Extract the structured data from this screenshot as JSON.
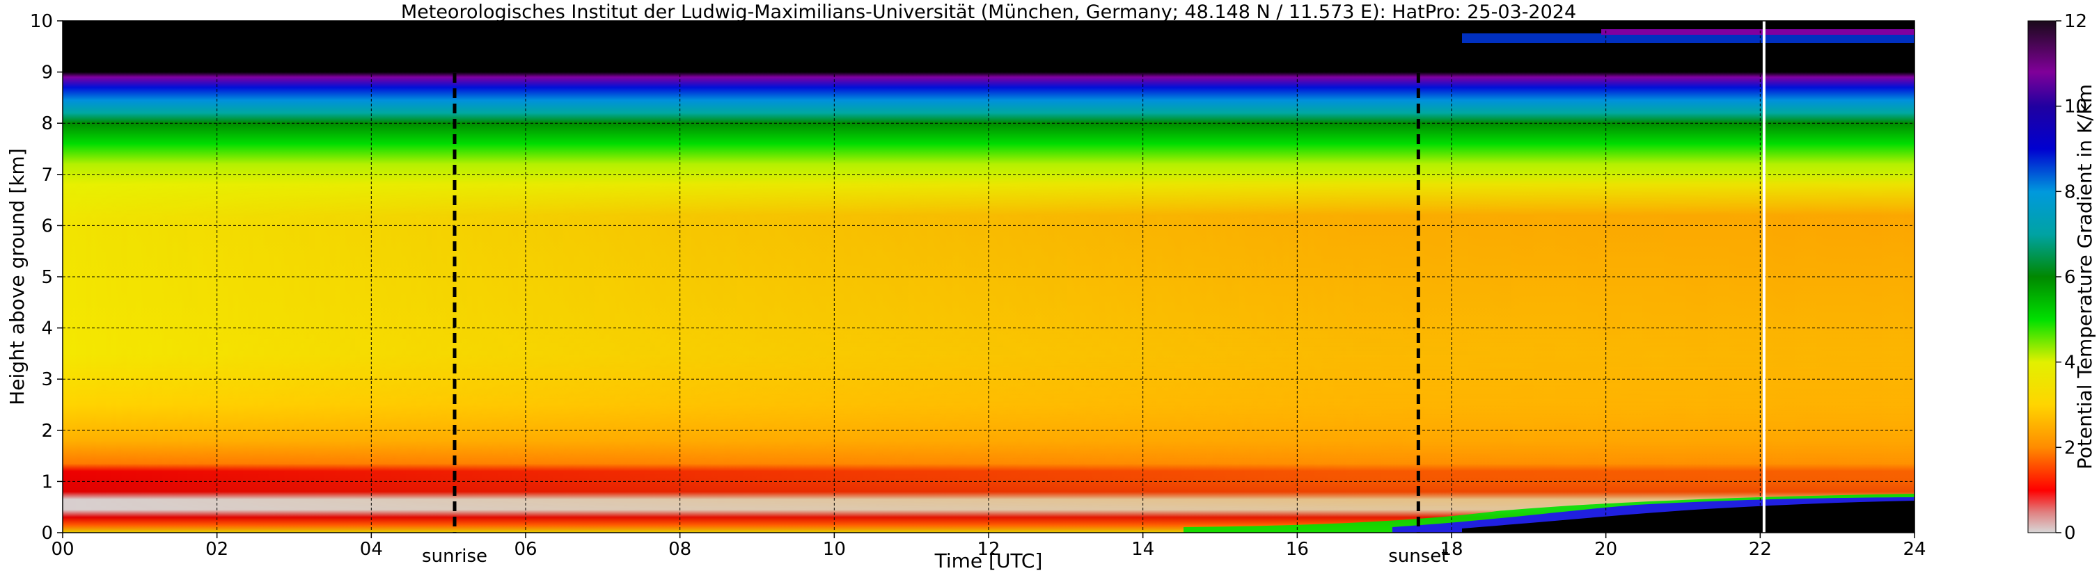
{
  "chart_data": {
    "type": "heatmap",
    "title": "Meteorologisches Institut der Ludwig-Maximilians-Universität (München, Germany; 48.148 N / 11.573 E):    HatPro: 25-03-2024",
    "xlabel": "Time [UTC]",
    "ylabel": "Height above ground [km]",
    "xlim": [
      0,
      24
    ],
    "ylim": [
      0,
      10
    ],
    "x_ticks": [
      "00",
      "02",
      "04",
      "06",
      "08",
      "10",
      "12",
      "14",
      "16",
      "18",
      "20",
      "22",
      "24"
    ],
    "y_ticks": [
      "0",
      "1",
      "2",
      "3",
      "4",
      "5",
      "6",
      "7",
      "8",
      "9",
      "10"
    ],
    "grid": true,
    "colorbar": {
      "label": "Potential Temperature Gradient in K/km",
      "range": [
        0,
        12
      ],
      "ticks": [
        "0",
        "2",
        "4",
        "6",
        "8",
        "10",
        "12"
      ],
      "colors": [
        "#d8d8d8",
        "#e06060",
        "#ff0000",
        "#ff8c00",
        "#ffd500",
        "#e2f000",
        "#00e000",
        "#008800",
        "#00a3a3",
        "#0099dd",
        "#0000d0",
        "#800099",
        "#1a0a1a"
      ]
    },
    "markers": [
      {
        "label": "sunrise",
        "x": 5.08,
        "style": "dashed"
      },
      {
        "label": "sunset",
        "x": 17.57,
        "style": "dashed"
      },
      {
        "label": "",
        "x": 22.05,
        "style": "solid-white"
      }
    ]
  }
}
